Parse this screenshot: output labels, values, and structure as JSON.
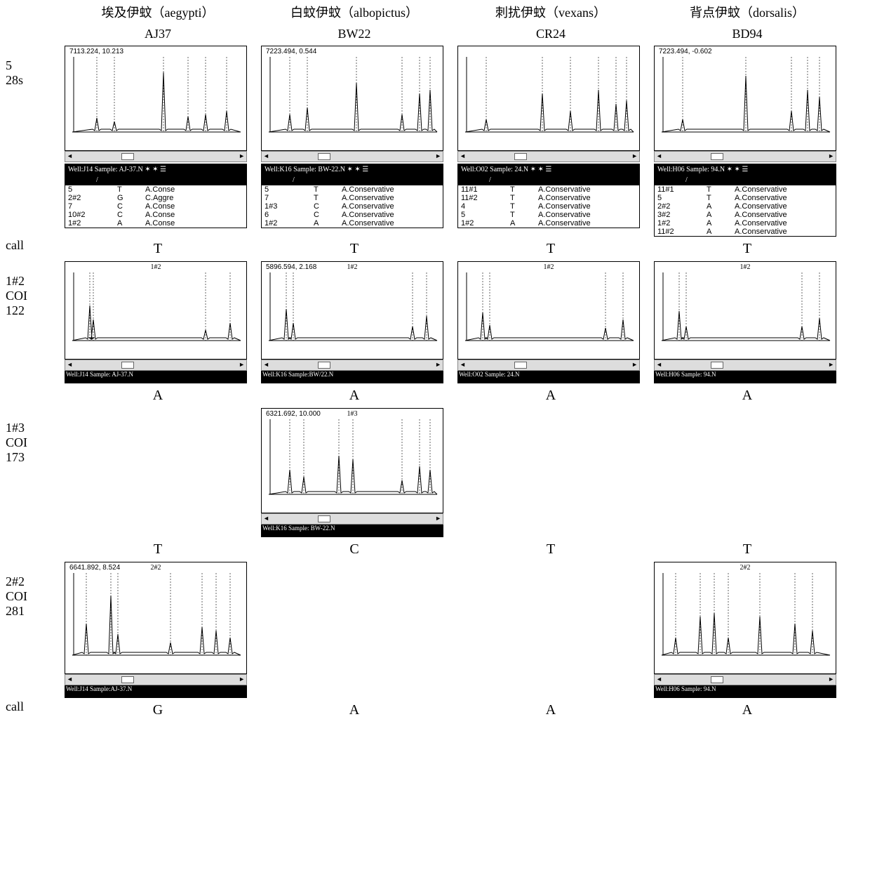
{
  "columns": [
    {
      "species_cn": "埃及伊蚊（aegypti）",
      "sample_id": "AJ37"
    },
    {
      "species_cn": "白蚊伊蚊（albopictus）",
      "sample_id": "BW22"
    },
    {
      "species_cn": "刺扰伊蚊（vexans）",
      "sample_id": "CR24"
    },
    {
      "species_cn": "背点伊蚊（dorsalis）",
      "sample_id": "BD94"
    }
  ],
  "rows": [
    {
      "label": "5\n28s",
      "type": "row28s"
    },
    {
      "label": "call",
      "type": "call",
      "values": [
        "T",
        "T",
        "T",
        "T"
      ]
    },
    {
      "label": "1#2\nCOI\n122",
      "type": "row122"
    },
    {
      "label": "",
      "type": "call",
      "values": [
        "A",
        "A",
        "A",
        "A"
      ]
    },
    {
      "label": "1#3\nCOI\n173",
      "type": "row173"
    },
    {
      "label": "",
      "type": "call",
      "values": [
        "T",
        "C",
        "T",
        "T"
      ]
    },
    {
      "label": "2#2\nCOI\n281",
      "type": "row281"
    },
    {
      "label": "call",
      "type": "call",
      "values": [
        "G",
        "A",
        "A",
        "A"
      ]
    }
  ],
  "spectra_28s": [
    {
      "annot": "7113.224, 10.213",
      "header": "Well:J14 Sample: AJ-37.N",
      "table": [
        [
          "5",
          "T",
          "A.Conse"
        ],
        [
          "2#2",
          "G",
          "C.Aggre"
        ],
        [
          "7",
          "C",
          "A.Conse"
        ],
        [
          "10#2",
          "C",
          "A.Conse"
        ],
        [
          "1#2",
          "A",
          "A.Conse"
        ]
      ],
      "peaks": [
        [
          45,
          20
        ],
        [
          70,
          15
        ],
        [
          140,
          85
        ],
        [
          175,
          22
        ],
        [
          200,
          25
        ],
        [
          230,
          30
        ]
      ]
    },
    {
      "annot": "7223.494, 0.544",
      "header": "Well:K16 Sample: BW-22.N",
      "table": [
        [
          "5",
          "T",
          "A.Conservative"
        ],
        [
          "7",
          "T",
          "A.Conservative"
        ],
        [
          "1#3",
          "C",
          "A.Conservative"
        ],
        [
          "6",
          "C",
          "A.Conservative"
        ],
        [
          "1#2",
          "A",
          "A.Conservative"
        ]
      ],
      "peaks": [
        [
          40,
          25
        ],
        [
          65,
          35
        ],
        [
          135,
          70
        ],
        [
          200,
          25
        ],
        [
          225,
          55
        ],
        [
          240,
          60
        ]
      ]
    },
    {
      "annot": "",
      "header": "Well:O02 Sample: 24.N",
      "table": [
        [
          "11#1",
          "T",
          "A.Conservative"
        ],
        [
          "11#2",
          "T",
          "A.Conservative"
        ],
        [
          "4",
          "T",
          "A.Conservative"
        ],
        [
          "5",
          "T",
          "A.Conservative"
        ],
        [
          "1#2",
          "A",
          "A.Conservative"
        ]
      ],
      "peaks": [
        [
          40,
          18
        ],
        [
          120,
          55
        ],
        [
          160,
          30
        ],
        [
          200,
          60
        ],
        [
          225,
          40
        ],
        [
          240,
          45
        ]
      ]
    },
    {
      "annot": "7223.494, -0.602",
      "header": "Well:H06 Sample: 94.N",
      "table": [
        [
          "11#1",
          "T",
          "A.Conservative"
        ],
        [
          "5",
          "T",
          "A.Conservative"
        ],
        [
          "2#2",
          "A",
          "A.Conservative"
        ],
        [
          "3#2",
          "A",
          "A.Conservative"
        ],
        [
          "1#2",
          "A",
          "A.Conservative"
        ],
        [
          "11#2",
          "A",
          "A.Conservative"
        ]
      ],
      "peaks": [
        [
          40,
          18
        ],
        [
          130,
          80
        ],
        [
          195,
          30
        ],
        [
          218,
          60
        ],
        [
          235,
          50
        ]
      ]
    }
  ],
  "spectra_122": [
    {
      "annot": "",
      "title": "1#2",
      "barstrip": "Well:J14 Sample: AJ-37.N",
      "peaks": [
        [
          35,
          50
        ],
        [
          40,
          30
        ],
        [
          200,
          15
        ],
        [
          235,
          25
        ]
      ]
    },
    {
      "annot": "5896.594, 2.168",
      "title": "1#2",
      "barstrip": "Well:K16 Sample:BW/22.N",
      "peaks": [
        [
          35,
          45
        ],
        [
          45,
          25
        ],
        [
          215,
          20
        ],
        [
          235,
          35
        ]
      ]
    },
    {
      "annot": "",
      "title": "1#2",
      "barstrip": "Well:O02 Sample: 24.N",
      "peaks": [
        [
          35,
          40
        ],
        [
          45,
          22
        ],
        [
          210,
          18
        ],
        [
          235,
          30
        ]
      ]
    },
    {
      "annot": "",
      "title": "1#2",
      "barstrip": "Well:H06 Sample: 94.N",
      "peaks": [
        [
          35,
          42
        ],
        [
          45,
          20
        ],
        [
          210,
          20
        ],
        [
          235,
          32
        ]
      ]
    }
  ],
  "spectra_173": [
    null,
    {
      "annot": "6321.692, 10.000",
      "title": "1#3",
      "barstrip": "Well:K16 Sample: BW-22.N",
      "peaks": [
        [
          40,
          35
        ],
        [
          60,
          25
        ],
        [
          110,
          55
        ],
        [
          130,
          50
        ],
        [
          200,
          20
        ],
        [
          225,
          40
        ],
        [
          240,
          35
        ]
      ]
    },
    null,
    null
  ],
  "spectra_281": [
    {
      "annot": "6641.892, 8.524",
      "title": "2#2",
      "barstrip": "Well:J14 Sample:AJ-37.N",
      "peaks": [
        [
          30,
          45
        ],
        [
          65,
          85
        ],
        [
          75,
          30
        ],
        [
          150,
          18
        ],
        [
          195,
          40
        ],
        [
          215,
          35
        ],
        [
          235,
          25
        ]
      ]
    },
    null,
    null,
    {
      "annot": "",
      "title": "2#2",
      "barstrip": "Well:H06 Sample: 94.N",
      "peaks": [
        [
          30,
          25
        ],
        [
          65,
          55
        ],
        [
          85,
          60
        ],
        [
          105,
          25
        ],
        [
          150,
          55
        ],
        [
          200,
          45
        ],
        [
          225,
          35
        ]
      ]
    }
  ],
  "colors": {
    "line": "#000000",
    "bg": "#ffffff",
    "tablebg": "#000000"
  }
}
